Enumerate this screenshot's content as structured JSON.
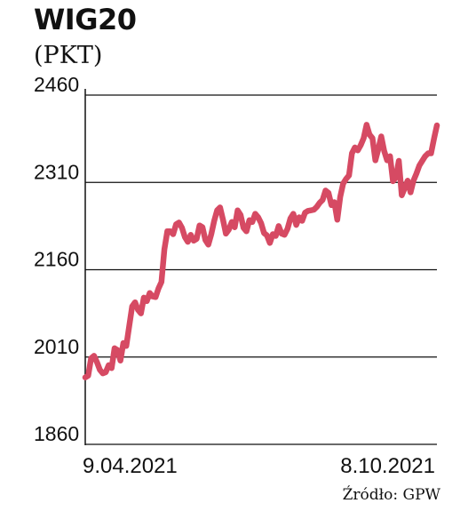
{
  "title": "WIG20",
  "unit": "(PKT)",
  "source": "Źródło: GPW",
  "chart_data": {
    "type": "line",
    "ylim": [
      1860,
      2460
    ],
    "yticks": [
      {
        "value": 2460,
        "label": "2460"
      },
      {
        "value": 2310,
        "label": "2310"
      },
      {
        "value": 2160,
        "label": "2160"
      },
      {
        "value": 2010,
        "label": "2010"
      },
      {
        "value": 1860,
        "label": "1860"
      }
    ],
    "x_labels": [
      "9.04.2021",
      "8.10.2021"
    ],
    "grid": true,
    "series": [
      {
        "color": "#d64a63",
        "values": [
          1975,
          1978,
          2008,
          2012,
          2001,
          1988,
          1982,
          1984,
          1996,
          1991,
          2025,
          2022,
          2004,
          2034,
          2029,
          2063,
          2097,
          2104,
          2091,
          2085,
          2112,
          2106,
          2120,
          2114,
          2113,
          2128,
          2139,
          2195,
          2226,
          2226,
          2221,
          2238,
          2241,
          2232,
          2216,
          2208,
          2220,
          2210,
          2213,
          2236,
          2233,
          2211,
          2203,
          2221,
          2244,
          2262,
          2267,
          2246,
          2222,
          2229,
          2242,
          2233,
          2262,
          2254,
          2232,
          2226,
          2245,
          2242,
          2256,
          2250,
          2240,
          2223,
          2219,
          2206,
          2221,
          2218,
          2235,
          2222,
          2220,
          2230,
          2248,
          2256,
          2237,
          2250,
          2244,
          2258,
          2261,
          2262,
          2263,
          2268,
          2275,
          2280,
          2296,
          2292,
          2271,
          2276,
          2246,
          2285,
          2308,
          2316,
          2322,
          2360,
          2370,
          2365,
          2374,
          2386,
          2409,
          2392,
          2386,
          2348,
          2367,
          2389,
          2364,
          2348,
          2355,
          2312,
          2319,
          2347,
          2288,
          2300,
          2313,
          2293,
          2313,
          2325,
          2339,
          2347,
          2355,
          2360,
          2360,
          2385,
          2408
        ]
      }
    ]
  }
}
